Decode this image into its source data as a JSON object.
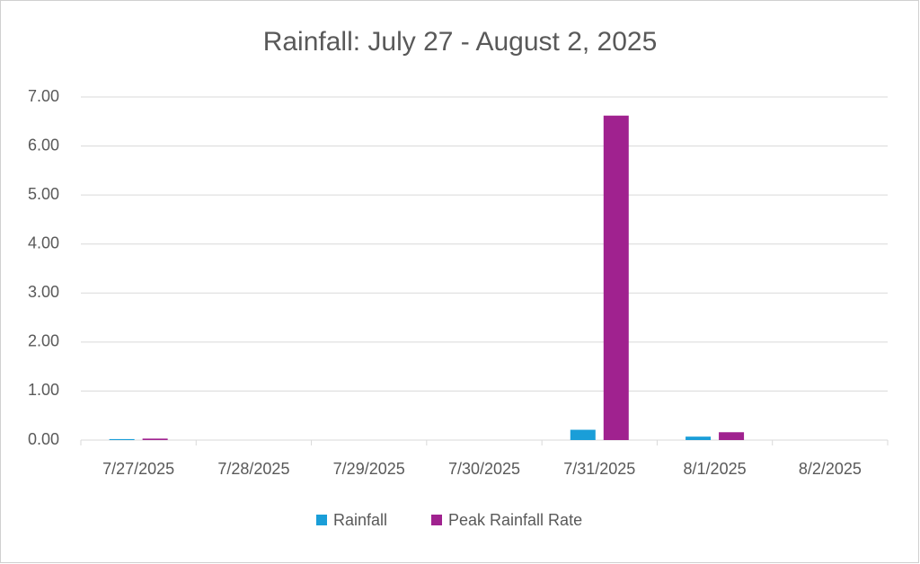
{
  "chart_data": {
    "type": "bar",
    "title": "Rainfall:  July 27 - August 2, 2025",
    "categories": [
      "7/27/2025",
      "7/28/2025",
      "7/29/2025",
      "7/30/2025",
      "7/31/2025",
      "8/1/2025",
      "8/2/2025"
    ],
    "series": [
      {
        "name": "Rainfall",
        "color": "#1a9ed8",
        "values": [
          0.02,
          0,
          0,
          0,
          0.21,
          0.07,
          0
        ]
      },
      {
        "name": "Peak Rainfall Rate",
        "color": "#a0228f",
        "values": [
          0.03,
          0,
          0,
          0,
          6.62,
          0.16,
          0
        ]
      }
    ],
    "ylim": [
      0,
      7
    ],
    "yticks": [
      {
        "value": 0,
        "label": "0.00"
      },
      {
        "value": 1,
        "label": "1.00"
      },
      {
        "value": 2,
        "label": "2.00"
      },
      {
        "value": 3,
        "label": "3.00"
      },
      {
        "value": 4,
        "label": "4.00"
      },
      {
        "value": 5,
        "label": "5.00"
      },
      {
        "value": 6,
        "label": "6.00"
      },
      {
        "value": 7,
        "label": "7.00"
      }
    ],
    "grid": true,
    "legend": "bottom"
  }
}
